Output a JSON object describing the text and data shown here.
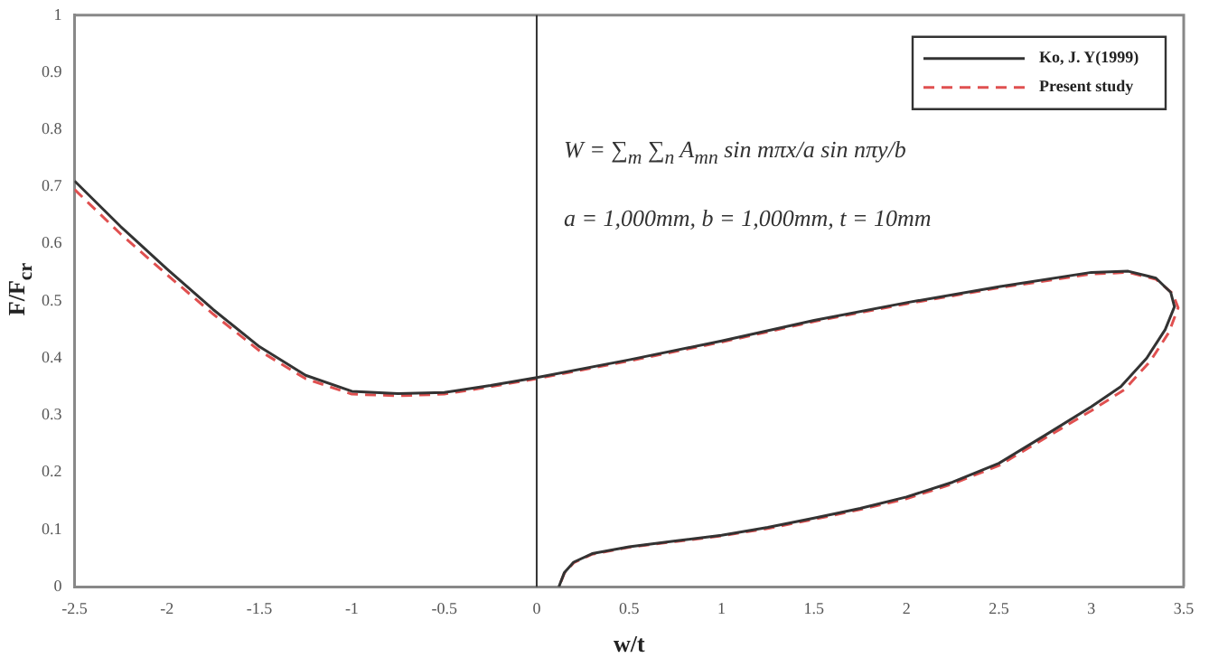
{
  "chart_data": {
    "type": "line",
    "xlabel": "w/t",
    "ylabel": "F/F$_{cr}$",
    "xlim": [
      -2.5,
      3.5
    ],
    "xticks": [
      -2.5,
      -2,
      -1.5,
      -1,
      -0.5,
      0,
      0.5,
      1,
      1.5,
      2,
      2.5,
      3,
      3.5
    ],
    "ylim": [
      0,
      1
    ],
    "yticks": [
      0,
      0.1,
      0.2,
      0.3,
      0.4,
      0.5,
      0.6,
      0.7,
      0.8,
      0.9,
      1
    ],
    "grid": false,
    "legend": "top right",
    "marker": "none",
    "ref_lines": [
      {
        "axis": "x",
        "value": 0,
        "color": "#333333"
      }
    ],
    "annotations": [
      "W = ∑$_{m}$ ∑$_{n}$ A$_{mn}$ sin mπx/a sin nπy/b",
      "a = 1,000mm, b = 1,000mm, t = 10mm"
    ],
    "series": [
      {
        "name": "Ko, J. Y(1999)",
        "color": "#333333",
        "line_style": "solid",
        "x": [
          -2.5,
          -2.25,
          -2,
          -1.75,
          -1.5,
          -1.25,
          -1,
          -0.75,
          -0.5,
          -0.25,
          0,
          0.5,
          1,
          1.5,
          2,
          2.5,
          3,
          3.2,
          3.35,
          3.43,
          3.45,
          3.4,
          3.3,
          3.16,
          3,
          2.75,
          2.5,
          2.25,
          2,
          1.75,
          1.5,
          1.25,
          1,
          0.75,
          0.5,
          0.3,
          0.2,
          0.15,
          0.12
        ],
        "values": [
          0.71,
          0.63,
          0.556,
          0.485,
          0.42,
          0.37,
          0.342,
          0.338,
          0.34,
          0.352,
          0.366,
          0.397,
          0.43,
          0.466,
          0.497,
          0.525,
          0.55,
          0.552,
          0.54,
          0.515,
          0.49,
          0.45,
          0.4,
          0.35,
          0.315,
          0.265,
          0.216,
          0.183,
          0.157,
          0.137,
          0.12,
          0.104,
          0.09,
          0.08,
          0.07,
          0.058,
          0.043,
          0.025,
          0
        ]
      },
      {
        "name": "Present study",
        "color": "#e05050",
        "line_style": "dashed",
        "x": [
          -2.5,
          -2.25,
          -2,
          -1.75,
          -1.5,
          -1.25,
          -1,
          -0.75,
          -0.5,
          -0.25,
          0,
          0.5,
          1,
          1.5,
          2,
          2.5,
          3,
          3.2,
          3.35,
          3.44,
          3.47,
          3.42,
          3.32,
          3.18,
          3,
          2.75,
          2.5,
          2.25,
          2,
          1.75,
          1.5,
          1.25,
          1,
          0.75,
          0.5,
          0.3,
          0.2,
          0.15,
          0.12
        ],
        "values": [
          0.695,
          0.617,
          0.546,
          0.477,
          0.413,
          0.364,
          0.337,
          0.334,
          0.337,
          0.35,
          0.364,
          0.395,
          0.428,
          0.464,
          0.495,
          0.523,
          0.547,
          0.55,
          0.538,
          0.513,
          0.488,
          0.445,
          0.395,
          0.345,
          0.308,
          0.26,
          0.212,
          0.18,
          0.154,
          0.135,
          0.118,
          0.102,
          0.089,
          0.079,
          0.069,
          0.057,
          0.042,
          0.024,
          0
        ]
      }
    ]
  }
}
